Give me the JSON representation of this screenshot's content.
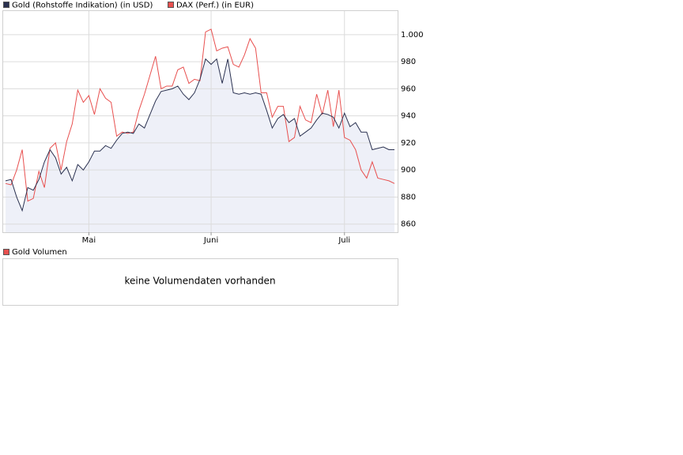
{
  "chart_data": {
    "type": "line",
    "categories": [
      null,
      null,
      null,
      null,
      null,
      null,
      null,
      null,
      null,
      null,
      null,
      null,
      null,
      null,
      null,
      "Mai",
      null,
      null,
      null,
      null,
      null,
      null,
      null,
      null,
      null,
      null,
      null,
      null,
      null,
      null,
      null,
      null,
      null,
      null,
      null,
      null,
      null,
      "Juni",
      null,
      null,
      null,
      null,
      null,
      null,
      null,
      null,
      null,
      null,
      null,
      null,
      null,
      null,
      null,
      null,
      null,
      null,
      null,
      null,
      null,
      null,
      null,
      "Juli",
      null,
      null,
      null,
      null,
      null,
      null,
      null,
      null,
      null
    ],
    "series": [
      {
        "name": "Gold (Rohstoffe Indikation) (in USD)",
        "color": "#2a3150",
        "area_color": "#eef0f8",
        "values": [
          892,
          893,
          880,
          870,
          887,
          885,
          893,
          906,
          915,
          909,
          897,
          902,
          892,
          904,
          900,
          906,
          914,
          914,
          918,
          916,
          922,
          927,
          928,
          927,
          934,
          931,
          941,
          951,
          958,
          959,
          960,
          962,
          956,
          952,
          957,
          967,
          982,
          978,
          982,
          964,
          982,
          957,
          956,
          957,
          956,
          957,
          956,
          944,
          931,
          938,
          941,
          935,
          938,
          925,
          928,
          931,
          937,
          942,
          941,
          939,
          931,
          942,
          932,
          935,
          928,
          928,
          915,
          916,
          917,
          915,
          915
        ]
      },
      {
        "name": "DAX (Perf.) (in EUR)",
        "color": "#e8504f",
        "values": [
          890,
          889,
          900,
          915,
          877,
          879,
          899,
          887,
          916,
          920,
          900,
          921,
          934,
          959,
          950,
          955,
          941,
          960,
          953,
          950,
          925,
          928,
          927,
          928,
          944,
          956,
          970,
          984,
          960,
          962,
          962,
          974,
          976,
          964,
          967,
          966,
          1002,
          1004,
          988,
          990,
          991,
          978,
          976,
          985,
          997,
          990,
          957,
          957,
          939,
          947,
          947,
          921,
          924,
          947,
          937,
          935,
          956,
          941,
          959,
          932,
          959,
          924,
          922,
          915,
          900,
          894,
          906,
          894,
          893,
          892,
          890
        ]
      }
    ],
    "ylim": [
      854,
      1018
    ],
    "yticks": [
      860,
      880,
      900,
      920,
      940,
      960,
      980,
      {
        "value": 1000,
        "label": "1.000"
      }
    ],
    "grid": true
  },
  "volume_panel": {
    "legend": "Gold Volumen",
    "color": "#e8504f",
    "message": "keine Volumendaten vorhanden"
  }
}
